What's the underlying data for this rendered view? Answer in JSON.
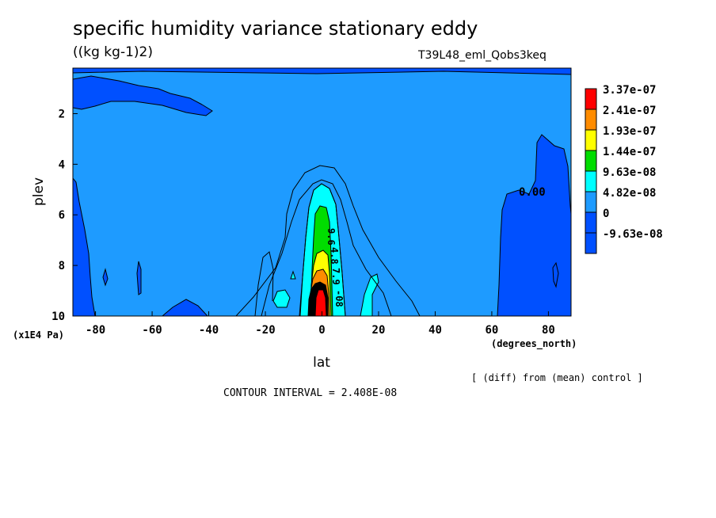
{
  "title": "specific humidity variance stationary eddy",
  "units": "((kg kg-1)2)",
  "run_id": "T39L48_eml_Qobs3keq",
  "note": "[ (diff) from (mean) control ]",
  "contour_interval": "CONTOUR INTERVAL = 2.408E-08",
  "chart_data": {
    "type": "contour",
    "title": "specific humidity variance stationary eddy",
    "xlabel": "lat",
    "xunits": "(degrees_north)",
    "ylabel": "plev",
    "yunits": "(x1E4 Pa)",
    "xlim": [
      -88,
      88
    ],
    "ylim": [
      0.2,
      10
    ],
    "x_ticks": [
      -80,
      -60,
      -40,
      -20,
      0,
      20,
      40,
      60,
      80
    ],
    "x_tick_labels": [
      "-80",
      "-60",
      "-40",
      "-20",
      "0",
      "20",
      "40",
      "60",
      "80"
    ],
    "y_ticks": [
      2,
      4,
      6,
      8,
      10
    ],
    "y_tick_labels": [
      "2",
      "4",
      "6",
      "8",
      "10"
    ],
    "legend": [
      {
        "label": "3.37e-07",
        "color": "#ff0000"
      },
      {
        "label": "2.41e-07",
        "color": "#ff8c00"
      },
      {
        "label": "1.93e-07",
        "color": "#ffff00"
      },
      {
        "label": "1.44e-07",
        "color": "#00dd00"
      },
      {
        "label": "9.63e-08",
        "color": "#00ffff"
      },
      {
        "label": "4.82e-08",
        "color": "#1e9bff"
      },
      {
        "label": "0",
        "color": "#0050ff"
      },
      {
        "label": "-9.63e-08",
        "color": "#0050ff"
      }
    ],
    "contour_labels": [
      "0.00",
      "9.6",
      "4.8",
      "7.9",
      "-08"
    ],
    "colors": {
      "background": "#1e9bff",
      "negative": "#0050ff",
      "cyan": "#00ffff",
      "green": "#00dd00",
      "yellow": "#ffff00",
      "orange": "#ff8c00",
      "red": "#ff0000",
      "black": "#000000"
    }
  }
}
